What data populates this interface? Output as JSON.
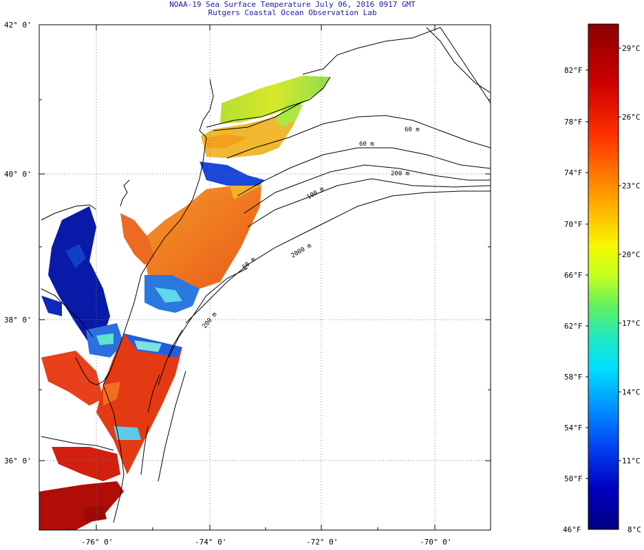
{
  "title": {
    "line1": "NOAA-19 Sea Surface Temperature July 06, 2016 0917 GMT",
    "line2": "Rutgers Coastal Ocean Observation Lab"
  },
  "axes": {
    "lat_labels": [
      "42° 0'",
      "40° 0'",
      "38° 0'",
      "36° 0'"
    ],
    "lon_labels": [
      "-76° 0'",
      "-74° 0'",
      "-72° 0'",
      "-70° 0'"
    ]
  },
  "isobaths": [
    "60 m",
    "60 m",
    "200 m",
    "100 m",
    "60 m",
    "2000 m",
    "200 m"
  ],
  "colorbar": {
    "fahrenheit": [
      "82°F",
      "78°F",
      "74°F",
      "70°F",
      "66°F",
      "62°F",
      "58°F",
      "54°F",
      "50°F",
      "46°F"
    ],
    "celsius": [
      "29°C",
      "26°C",
      "23°C",
      "20°C",
      "17°C",
      "14°C",
      "11°C",
      "8°C"
    ],
    "colors": [
      "#8b0000",
      "#d00000",
      "#ff2000",
      "#ff6a00",
      "#ffa500",
      "#ffe000",
      "#e8ff00",
      "#90ff40",
      "#30ffb0",
      "#00e0ff",
      "#0090ff",
      "#0030ff",
      "#0000c8",
      "#000080"
    ]
  },
  "sst_colors": {
    "warm": "#e83a12",
    "hot": "#b80d06",
    "orange": "#f27a1e",
    "yellow_orange": "#f2a826",
    "yellow_green": "#c8e830",
    "green": "#7ee060",
    "cyan": "#30c8e8",
    "blue": "#1040d8",
    "navy": "#0a1a9a"
  }
}
